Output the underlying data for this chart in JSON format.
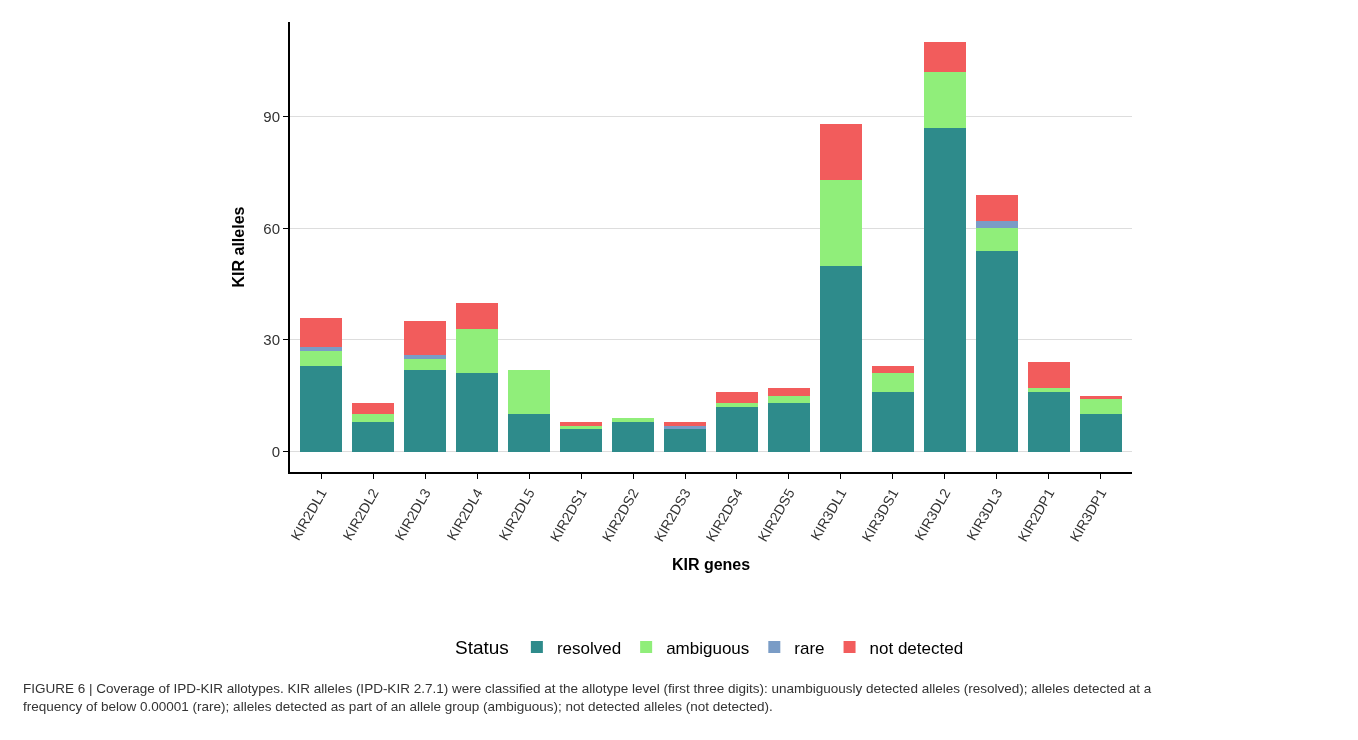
{
  "chart_data": {
    "type": "bar",
    "stacked": true,
    "xlabel": "KIR genes",
    "ylabel": "KIR alleles",
    "legend_title": "Status",
    "legend": "bottom",
    "grid": "y",
    "categories": [
      "KIR2DL1",
      "KIR2DL2",
      "KIR2DL3",
      "KIR2DL4",
      "KIR2DL5",
      "KIR2DS1",
      "KIR2DS2",
      "KIR2DS3",
      "KIR2DS4",
      "KIR2DS5",
      "KIR3DL1",
      "KIR3DS1",
      "KIR3DL2",
      "KIR3DL3",
      "KIR2DP1",
      "KIR3DP1"
    ],
    "series": [
      {
        "name": "resolved",
        "color": "#2e8b8b",
        "values": [
          23,
          8,
          22,
          21,
          10,
          6,
          8,
          6,
          12,
          13,
          50,
          16,
          87,
          54,
          16,
          10
        ]
      },
      {
        "name": "ambiguous",
        "color": "#90ee7a",
        "values": [
          4,
          2,
          3,
          12,
          12,
          1,
          1,
          0,
          1,
          2,
          23,
          5,
          15,
          6,
          1,
          4
        ]
      },
      {
        "name": "rare",
        "color": "#7a9cc6",
        "values": [
          1,
          0,
          1,
          0,
          0,
          0,
          0,
          1,
          0,
          0,
          0,
          0,
          0,
          2,
          0,
          0
        ]
      },
      {
        "name": "not detected",
        "color": "#f25c5c",
        "values": [
          8,
          3,
          9,
          7,
          0,
          1,
          0,
          1,
          3,
          2,
          15,
          2,
          8,
          7,
          7,
          1
        ]
      }
    ],
    "ylim": [
      -5.5,
      115.5
    ],
    "yticks": [
      0,
      30,
      60,
      90
    ],
    "annotations": [
      "FIGURE 6 | Coverage of IPD-KIR allotypes. KIR alleles (IPD-KIR 2.7.1) were classified at the allotype level (first three digits): unambiguously detected alleles (resolved); alleles detected at a frequency of below 0.00001 (rare); alleles detected as part of an allele group (ambiguous); not detected alleles (not detected)."
    ]
  }
}
